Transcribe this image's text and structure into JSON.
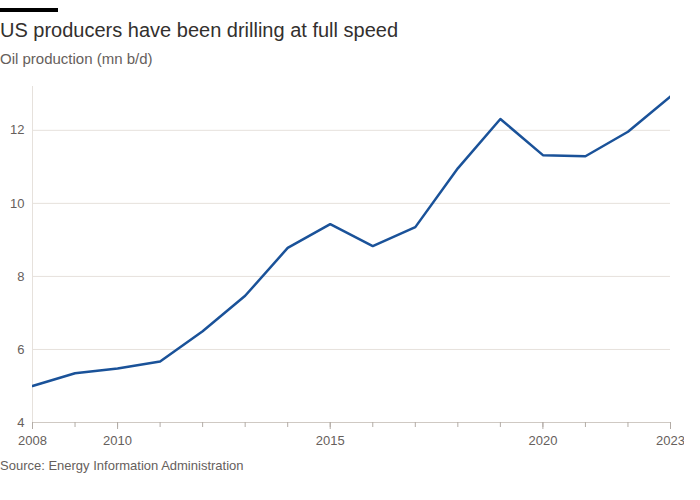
{
  "chart_data": {
    "type": "line",
    "title": "US producers have been drilling at full speed",
    "subtitle": "Oil production (mn b/d)",
    "source": "Source: Energy Information Administration",
    "x": [
      2008,
      2009,
      2010,
      2011,
      2012,
      2013,
      2014,
      2015,
      2016,
      2017,
      2018,
      2019,
      2020,
      2021,
      2022,
      2023
    ],
    "series": [
      {
        "name": "Oil production",
        "color": "#1a5299",
        "values": [
          5.0,
          5.35,
          5.48,
          5.67,
          6.5,
          7.47,
          8.78,
          9.43,
          8.83,
          9.35,
          10.96,
          12.31,
          11.32,
          11.29,
          11.96,
          12.93
        ]
      }
    ],
    "xlim": [
      2008,
      2023
    ],
    "xticks": [
      2008,
      2010,
      2015,
      2020,
      2023
    ],
    "ylim": [
      4,
      13.2
    ],
    "yticks": [
      4,
      6,
      8,
      10,
      12
    ],
    "grid": true
  }
}
